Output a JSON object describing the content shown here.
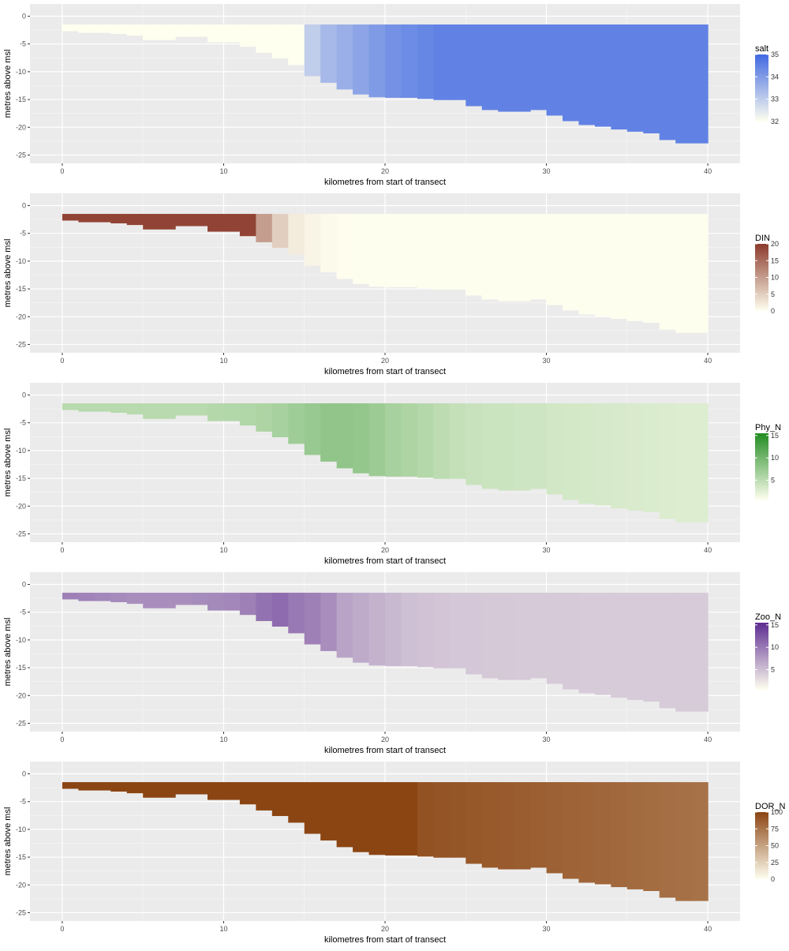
{
  "chart_data": [
    {
      "type": "heatmap",
      "variable": "salt",
      "xlabel": "kilometres from start of transect",
      "ylabel": "metres above msl",
      "xlim": [
        -2,
        42
      ],
      "ylim": [
        -26.5,
        2.2
      ],
      "x_ticks": [
        0,
        10,
        20,
        30,
        40
      ],
      "y_ticks": [
        0,
        -5,
        -10,
        -15,
        -20,
        -25
      ],
      "surface_depth": -1.5,
      "columns_x": [
        0,
        1,
        2,
        3,
        4,
        5,
        6,
        7,
        8,
        9,
        10,
        11,
        12,
        13,
        14,
        15,
        16,
        17,
        18,
        19,
        20,
        21,
        22,
        23,
        24,
        25,
        26,
        27,
        28,
        29,
        30,
        31,
        32,
        33,
        34,
        35,
        36,
        37,
        38,
        39,
        40
      ],
      "bottom_depth": [
        -2.7,
        -3.0,
        -3.0,
        -3.2,
        -3.5,
        -4.3,
        -4.3,
        -3.7,
        -3.7,
        -4.7,
        -4.7,
        -5.5,
        -6.6,
        -7.6,
        -8.8,
        -10.8,
        -12.0,
        -13.2,
        -14.1,
        -14.6,
        -14.7,
        -14.7,
        -14.9,
        -15.1,
        -15.1,
        -16.2,
        -16.9,
        -17.2,
        -17.2,
        -16.9,
        -17.9,
        -18.9,
        -19.6,
        -19.9,
        -20.4,
        -20.8,
        -21.1,
        -22.3,
        -22.9,
        -22.9
      ],
      "values": [
        32.0,
        32.0,
        32.0,
        32.0,
        32.0,
        32.0,
        32.0,
        32.0,
        32.0,
        32.0,
        32.0,
        32.0,
        32.0,
        32.0,
        32.0,
        33.0,
        33.4,
        33.6,
        33.8,
        34.0,
        34.2,
        34.3,
        34.4,
        34.5,
        34.5,
        34.5,
        34.5,
        34.5,
        34.5,
        34.5,
        34.5,
        34.5,
        34.5,
        34.5,
        34.5,
        34.5,
        34.5,
        34.5,
        34.5,
        34.5
      ],
      "legend": {
        "title": "salt",
        "min": 32,
        "max": 35,
        "ticks": [
          32,
          33,
          34,
          35
        ],
        "low_color": "#fffff0",
        "high_color": "#4169e1"
      }
    },
    {
      "type": "heatmap",
      "variable": "DIN",
      "xlabel": "kilometres from start of transect",
      "ylabel": "metres above msl",
      "xlim": [
        -2,
        42
      ],
      "ylim": [
        -26.5,
        2.2
      ],
      "x_ticks": [
        0,
        10,
        20,
        30,
        40
      ],
      "y_ticks": [
        0,
        -5,
        -10,
        -15,
        -20,
        -25
      ],
      "surface_depth": -1.5,
      "columns_x": [
        0,
        1,
        2,
        3,
        4,
        5,
        6,
        7,
        8,
        9,
        10,
        11,
        12,
        13,
        14,
        15,
        16,
        17,
        18,
        19,
        20,
        21,
        22,
        23,
        24,
        25,
        26,
        27,
        28,
        29,
        30,
        31,
        32,
        33,
        34,
        35,
        36,
        37,
        38,
        39,
        40
      ],
      "bottom_depth": [
        -2.7,
        -3.0,
        -3.0,
        -3.2,
        -3.5,
        -4.3,
        -4.3,
        -3.7,
        -3.7,
        -4.7,
        -4.7,
        -5.5,
        -6.6,
        -7.6,
        -8.8,
        -10.8,
        -12.0,
        -13.2,
        -14.1,
        -14.6,
        -14.7,
        -14.7,
        -14.9,
        -15.1,
        -15.1,
        -16.2,
        -16.9,
        -17.2,
        -17.2,
        -16.9,
        -17.9,
        -18.9,
        -19.6,
        -19.9,
        -20.4,
        -20.8,
        -21.1,
        -22.3,
        -22.9,
        -22.9
      ],
      "values": [
        19.0,
        19.0,
        19.0,
        19.0,
        19.0,
        19.0,
        19.0,
        19.0,
        19.0,
        19.0,
        19.0,
        19.0,
        10.0,
        5.0,
        2.0,
        1.0,
        0.5,
        0.2,
        0.1,
        0.1,
        0.1,
        0.1,
        0.1,
        0.1,
        0.1,
        0.1,
        0.1,
        0.1,
        0.1,
        0.1,
        0.1,
        0.1,
        0.1,
        0.1,
        0.1,
        0.1,
        0.1,
        0.1,
        0.1,
        0.1
      ],
      "legend": {
        "title": "DIN",
        "min": 0,
        "max": 20,
        "ticks": [
          0,
          5,
          10,
          15,
          20
        ],
        "low_color": "#fffff0",
        "high_color": "#8b3a2b"
      }
    },
    {
      "type": "heatmap",
      "variable": "Phy_N",
      "xlabel": "kilometres from start of transect",
      "ylabel": "metres above msl",
      "xlim": [
        -2,
        42
      ],
      "ylim": [
        -26.5,
        2.2
      ],
      "x_ticks": [
        0,
        10,
        20,
        30,
        40
      ],
      "y_ticks": [
        0,
        -5,
        -10,
        -15,
        -20,
        -25
      ],
      "surface_depth": -1.5,
      "columns_x": [
        0,
        1,
        2,
        3,
        4,
        5,
        6,
        7,
        8,
        9,
        10,
        11,
        12,
        13,
        14,
        15,
        16,
        17,
        18,
        19,
        20,
        21,
        22,
        23,
        24,
        25,
        26,
        27,
        28,
        29,
        30,
        31,
        32,
        33,
        34,
        35,
        36,
        37,
        38,
        39,
        40
      ],
      "bottom_depth": [
        -2.7,
        -3.0,
        -3.0,
        -3.2,
        -3.5,
        -4.3,
        -4.3,
        -3.7,
        -3.7,
        -4.7,
        -4.7,
        -5.5,
        -6.6,
        -7.6,
        -8.8,
        -10.8,
        -12.0,
        -13.2,
        -14.1,
        -14.6,
        -14.7,
        -14.7,
        -14.9,
        -15.1,
        -15.1,
        -16.2,
        -16.9,
        -17.2,
        -17.2,
        -16.9,
        -17.9,
        -18.9,
        -19.6,
        -19.9,
        -20.4,
        -20.8,
        -21.1,
        -22.3,
        -22.9,
        -22.9
      ],
      "values": [
        5.3,
        5.3,
        5.3,
        5.3,
        5.3,
        5.3,
        5.3,
        5.3,
        5.3,
        5.5,
        5.7,
        5.8,
        6.0,
        6.5,
        7.0,
        7.5,
        8.0,
        8.0,
        7.8,
        7.2,
        6.5,
        6.0,
        5.5,
        5.0,
        4.5,
        4.2,
        4.0,
        4.0,
        3.8,
        3.8,
        3.6,
        3.5,
        3.4,
        3.3,
        3.2,
        3.1,
        3.0,
        2.9,
        2.8,
        2.8
      ],
      "legend": {
        "title": "Phy_N",
        "min": 0.5,
        "max": 15.5,
        "ticks": [
          5,
          10,
          15
        ],
        "low_color": "#fffff0",
        "high_color": "#228b22"
      }
    },
    {
      "type": "heatmap",
      "variable": "Zoo_N",
      "xlabel": "kilometres from start of transect",
      "ylabel": "metres above msl",
      "xlim": [
        -2,
        42
      ],
      "ylim": [
        -26.5,
        2.2
      ],
      "x_ticks": [
        0,
        10,
        20,
        30,
        40
      ],
      "y_ticks": [
        0,
        -5,
        -10,
        -15,
        -20,
        -25
      ],
      "surface_depth": -1.5,
      "columns_x": [
        0,
        1,
        2,
        3,
        4,
        5,
        6,
        7,
        8,
        9,
        10,
        11,
        12,
        13,
        14,
        15,
        16,
        17,
        18,
        19,
        20,
        21,
        22,
        23,
        24,
        25,
        26,
        27,
        28,
        29,
        30,
        31,
        32,
        33,
        34,
        35,
        36,
        37,
        38,
        39,
        40
      ],
      "bottom_depth": [
        -2.7,
        -3.0,
        -3.0,
        -3.2,
        -3.5,
        -4.3,
        -4.3,
        -3.7,
        -3.7,
        -4.7,
        -4.7,
        -5.5,
        -6.6,
        -7.6,
        -8.8,
        -10.8,
        -12.0,
        -13.2,
        -14.1,
        -14.6,
        -14.7,
        -14.7,
        -14.9,
        -15.1,
        -15.1,
        -16.2,
        -16.9,
        -17.2,
        -17.2,
        -16.9,
        -17.9,
        -18.9,
        -19.6,
        -19.9,
        -20.4,
        -20.8,
        -21.1,
        -22.3,
        -22.9,
        -22.9
      ],
      "values": [
        9.5,
        9.3,
        9.0,
        8.8,
        8.5,
        8.5,
        8.5,
        8.5,
        8.7,
        8.9,
        9.0,
        9.5,
        10.5,
        11.0,
        10.0,
        9.5,
        8.5,
        7.0,
        6.5,
        6.0,
        5.5,
        5.0,
        4.8,
        4.6,
        4.5,
        4.5,
        4.4,
        4.4,
        4.3,
        4.3,
        4.3,
        4.3,
        4.2,
        4.2,
        4.2,
        4.2,
        4.2,
        4.2,
        4.2,
        4.2
      ],
      "legend": {
        "title": "Zoo_N",
        "min": 0.5,
        "max": 15.5,
        "ticks": [
          5,
          10,
          15
        ],
        "low_color": "#fffff0",
        "high_color": "#5d2c91"
      }
    },
    {
      "type": "heatmap",
      "variable": "DOR_N",
      "xlabel": "kilometres from start of transect",
      "ylabel": "metres above msl",
      "xlim": [
        -2,
        42
      ],
      "ylim": [
        -26.5,
        2.2
      ],
      "x_ticks": [
        0,
        10,
        20,
        30,
        40
      ],
      "y_ticks": [
        0,
        -5,
        -10,
        -15,
        -20,
        -25
      ],
      "surface_depth": -1.5,
      "columns_x": [
        0,
        1,
        2,
        3,
        4,
        5,
        6,
        7,
        8,
        9,
        10,
        11,
        12,
        13,
        14,
        15,
        16,
        17,
        18,
        19,
        20,
        21,
        22,
        23,
        24,
        25,
        26,
        27,
        28,
        29,
        30,
        31,
        32,
        33,
        34,
        35,
        36,
        37,
        38,
        39,
        40
      ],
      "bottom_depth": [
        -2.7,
        -3.0,
        -3.0,
        -3.2,
        -3.5,
        -4.3,
        -4.3,
        -3.7,
        -3.7,
        -4.7,
        -4.7,
        -5.5,
        -6.6,
        -7.6,
        -8.8,
        -10.8,
        -12.0,
        -13.2,
        -14.1,
        -14.6,
        -14.7,
        -14.7,
        -14.9,
        -15.1,
        -15.1,
        -16.2,
        -16.9,
        -17.2,
        -17.2,
        -16.9,
        -17.9,
        -18.9,
        -19.6,
        -19.9,
        -20.4,
        -20.8,
        -21.1,
        -22.3,
        -22.9,
        -22.9
      ],
      "values": [
        100,
        100,
        100,
        100,
        100,
        100,
        100,
        100,
        100,
        100,
        100,
        100,
        100,
        100,
        100,
        100,
        100,
        100,
        100,
        100,
        100,
        100,
        93,
        92,
        91,
        90,
        89,
        88,
        87,
        86,
        85,
        84,
        83,
        82,
        81,
        80,
        79,
        78,
        77,
        76
      ],
      "legend": {
        "title": "DOR_N",
        "min": 0,
        "max": 100,
        "ticks": [
          0,
          25,
          50,
          75,
          100
        ],
        "low_color": "#fffff0",
        "high_color": "#8b4513"
      }
    }
  ]
}
